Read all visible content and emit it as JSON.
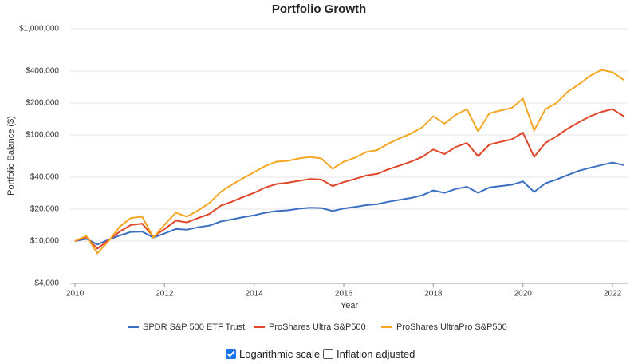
{
  "chart_data": {
    "type": "line",
    "title": "Portfolio Growth",
    "x_label": "Year",
    "y_label": "Portfolio Balance ($)",
    "log_scale": true,
    "grid": true,
    "legend": "bottom",
    "x": [
      2010,
      2010.25,
      2010.5,
      2010.75,
      2011,
      2011.25,
      2011.5,
      2011.75,
      2012,
      2012.25,
      2012.5,
      2012.75,
      2013,
      2013.25,
      2013.5,
      2013.75,
      2014,
      2014.25,
      2014.5,
      2014.75,
      2015,
      2015.25,
      2015.5,
      2015.75,
      2016,
      2016.25,
      2016.5,
      2016.75,
      2017,
      2017.25,
      2017.5,
      2017.75,
      2018,
      2018.25,
      2018.5,
      2018.75,
      2019,
      2019.25,
      2019.5,
      2019.75,
      2020,
      2020.25,
      2020.5,
      2020.75,
      2021,
      2021.25,
      2021.5,
      2021.75,
      2022,
      2022.25
    ],
    "xlim": [
      2009.9,
      2022.35
    ],
    "xticks": [
      2010,
      2012,
      2014,
      2016,
      2018,
      2020,
      2022
    ],
    "ylim": [
      4000,
      1000000
    ],
    "yticks": [
      {
        "value": 4000,
        "label": "$4,000"
      },
      {
        "value": 10000,
        "label": "$10,000"
      },
      {
        "value": 20000,
        "label": "$20,000"
      },
      {
        "value": 40000,
        "label": "$40,000"
      },
      {
        "value": 100000,
        "label": "$100,000"
      },
      {
        "value": 200000,
        "label": "$200,000"
      },
      {
        "value": 400000,
        "label": "$400,000"
      },
      {
        "value": 1000000,
        "label": "$1,000,000"
      }
    ],
    "series": [
      {
        "name": "SPDR S&P 500 ETF Trust",
        "color": "#3a6fc4",
        "values": [
          10000,
          10500,
          9300,
          10300,
          11300,
          12200,
          12300,
          10800,
          11800,
          13000,
          12800,
          13500,
          14000,
          15300,
          16000,
          16800,
          17500,
          18500,
          19200,
          19500,
          20200,
          20600,
          20500,
          19200,
          20300,
          21000,
          21800,
          22300,
          23500,
          24500,
          25500,
          27000,
          30000,
          28500,
          31000,
          32500,
          28500,
          32000,
          33000,
          34000,
          36500,
          29000,
          35000,
          38000,
          42000,
          46000,
          49000,
          52000,
          55000,
          52000
        ]
      },
      {
        "name": "ProShares Ultra S&P500",
        "color": "#e0472a",
        "values": [
          10000,
          10900,
          8500,
          10200,
          12300,
          14200,
          14600,
          11000,
          13000,
          15600,
          15000,
          16500,
          18000,
          21500,
          23500,
          26000,
          28500,
          32000,
          34500,
          35500,
          37000,
          38500,
          38000,
          33000,
          36000,
          38500,
          41500,
          43000,
          47500,
          51500,
          56000,
          62000,
          73000,
          66000,
          77000,
          84000,
          63000,
          81000,
          86000,
          91000,
          105000,
          62000,
          84000,
          97000,
          115000,
          132000,
          150000,
          165000,
          175000,
          150000
        ]
      },
      {
        "name": "ProShares UltraPro S&P500",
        "color": "#f5a623",
        "values": [
          10000,
          11200,
          7700,
          10000,
          13700,
          16500,
          17000,
          10800,
          14300,
          18500,
          17000,
          19500,
          22800,
          29000,
          34000,
          39000,
          44500,
          51000,
          56000,
          57000,
          60000,
          62000,
          60000,
          48000,
          56000,
          61000,
          69000,
          72000,
          83000,
          93000,
          103000,
          118000,
          150000,
          128000,
          155000,
          175000,
          108000,
          160000,
          170000,
          180000,
          220000,
          110000,
          175000,
          200000,
          255000,
          300000,
          360000,
          410000,
          390000,
          330000
        ]
      }
    ]
  },
  "controls": [
    {
      "label": "Logarithmic scale",
      "checked": true
    },
    {
      "label": "Inflation adjusted",
      "checked": false
    }
  ]
}
